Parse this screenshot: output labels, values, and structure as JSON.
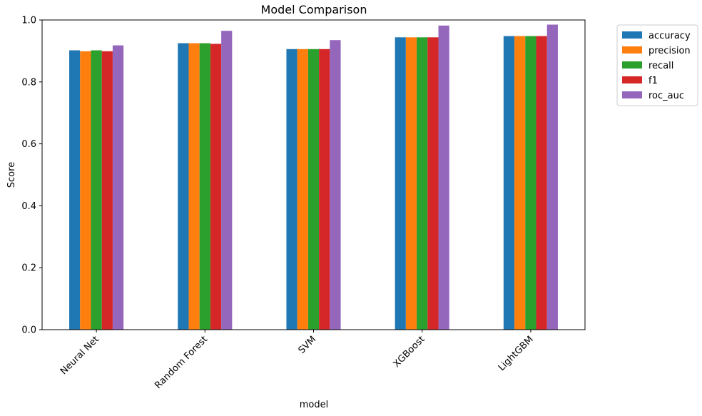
{
  "chart_data": {
    "type": "bar",
    "title": "Model Comparison",
    "xlabel": "model",
    "ylabel": "Score",
    "categories": [
      "Neural Net",
      "Random Forest",
      "SVM",
      "XGBoost",
      "LightGBM"
    ],
    "ylim": [
      0,
      1.0
    ],
    "yticks": [
      "0.0",
      "0.2",
      "0.4",
      "0.6",
      "0.8",
      "1.0"
    ],
    "grid": false,
    "legend_position": "outside-top-right",
    "series": [
      {
        "name": "accuracy",
        "color": "#1f77b4",
        "values": [
          0.902,
          0.925,
          0.906,
          0.944,
          0.948
        ]
      },
      {
        "name": "precision",
        "color": "#ff7f0e",
        "values": [
          0.899,
          0.925,
          0.906,
          0.944,
          0.948
        ]
      },
      {
        "name": "recall",
        "color": "#2ca02c",
        "values": [
          0.902,
          0.925,
          0.906,
          0.944,
          0.948
        ]
      },
      {
        "name": "f1",
        "color": "#d62728",
        "values": [
          0.899,
          0.923,
          0.906,
          0.944,
          0.948
        ]
      },
      {
        "name": "roc_auc",
        "color": "#9467bd",
        "values": [
          0.918,
          0.965,
          0.935,
          0.982,
          0.985
        ]
      }
    ]
  }
}
